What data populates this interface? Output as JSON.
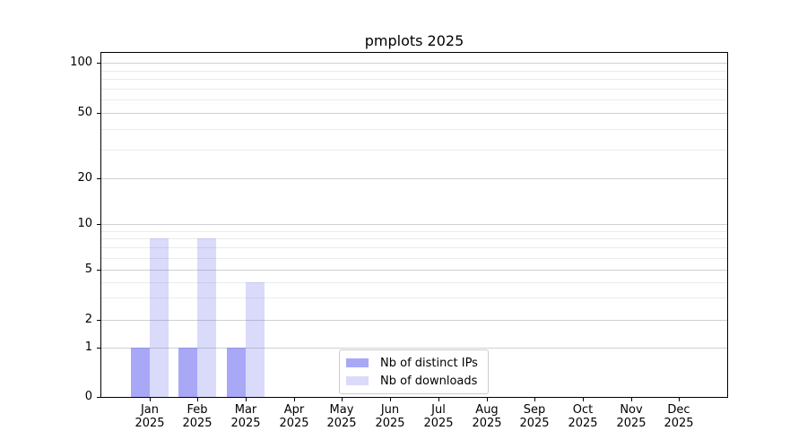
{
  "figure": {
    "title": "pmplots 2025"
  },
  "chart_data": {
    "type": "bar",
    "title": "pmplots 2025",
    "categories": [
      "Jan",
      "Feb",
      "Mar",
      "Apr",
      "May",
      "Jun",
      "Jul",
      "Aug",
      "Sep",
      "Oct",
      "Nov",
      "Dec"
    ],
    "x_tick_year": "2025",
    "series": [
      {
        "name": "Nb of distinct IPs",
        "color": "rgba(100,100,240,0.56)",
        "values": [
          1,
          1,
          1,
          0,
          0,
          0,
          0,
          0,
          0,
          0,
          0,
          0
        ]
      },
      {
        "name": "Nb of downloads",
        "color": "rgba(100,100,240,0.24)",
        "values": [
          8,
          8,
          4,
          0,
          0,
          0,
          0,
          0,
          0,
          0,
          0,
          0
        ]
      }
    ],
    "xlabel": "",
    "ylabel": "",
    "y_axis": {
      "scale": "log-like (0 pinned at baseline)",
      "major_ticks": [
        0,
        1,
        2,
        5,
        10,
        20,
        50,
        100
      ],
      "minor_gridlines": [
        3,
        4,
        6,
        7,
        8,
        9,
        30,
        40,
        60,
        70,
        80,
        90
      ]
    },
    "grid": true,
    "legend": {
      "position": "lower center",
      "entries": [
        "Nb of distinct IPs",
        "Nb of downloads"
      ]
    },
    "colors": {
      "grid_major": "#d0d0d0",
      "grid_minor": "#ebebeb",
      "axis": "#000000",
      "legend_border": "#cccccc",
      "background": "#ffffff"
    }
  }
}
